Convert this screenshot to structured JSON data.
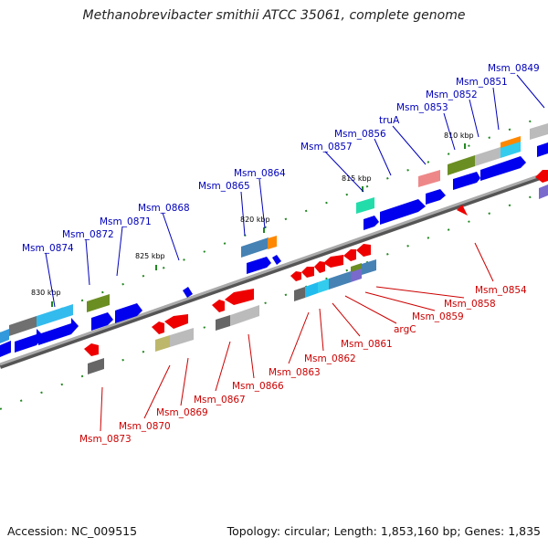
{
  "title": "Methanobrevibacter smithii ATCC 35061, complete genome",
  "footer": {
    "accession": "Accession: NC_009515",
    "topology": "Topology: circular; Length: 1,853,160 bp; Genes: 1,835"
  },
  "scale_ticks": [
    "810 kbp",
    "815 kbp",
    "820 kbp",
    "825 kbp",
    "830 kbp"
  ],
  "labels_top_strand": [
    "Msm_0849",
    "Msm_0851",
    "Msm_0852",
    "Msm_0853",
    "truA",
    "Msm_0856",
    "Msm_0857",
    "Msm_0864",
    "Msm_0865",
    "Msm_0868",
    "Msm_0871",
    "Msm_0872",
    "Msm_0874"
  ],
  "labels_bottom_strand": [
    "Msm_0854",
    "Msm_0858",
    "Msm_0859",
    "argC",
    "Msm_0861",
    "Msm_0862",
    "Msm_0863",
    "Msm_0866",
    "Msm_0867",
    "Msm_0869",
    "Msm_0870",
    "Msm_0873"
  ],
  "colors": {
    "forward_gene": "#0000ee",
    "reverse_gene": "#ee0000",
    "label_forward": "#0000bb",
    "label_reverse": "#cc0000",
    "backbone": "#888888",
    "tick_mark": "#228822"
  }
}
